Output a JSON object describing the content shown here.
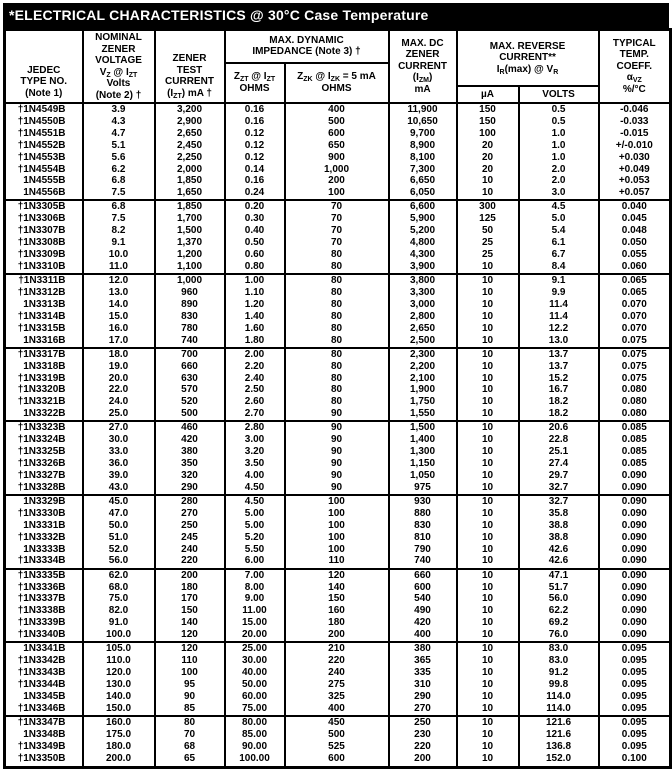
{
  "title": "*ELECTRICAL CHARACTERISTICS @ 30°C Case Temperature",
  "colors": {
    "title_bg": "#000000",
    "title_fg": "#ffffff",
    "border": "#000000",
    "page_bg": "#ffffff"
  },
  "table": {
    "columns": [
      "type",
      "vz",
      "izt",
      "zzt",
      "zzk",
      "izm",
      "ir_ua",
      "vr_volts",
      "coeff"
    ],
    "headers": {
      "jedec": [
        "JEDEC",
        "TYPE NO.",
        "(Note 1)"
      ],
      "nominal": [
        "NOMINAL",
        "ZENER",
        "VOLTAGE",
        "V~Z~ @ I~ZT~",
        "Volts",
        "(Note 2) †"
      ],
      "test_current": [
        "ZENER",
        "TEST",
        "CURRENT",
        "(I~ZT~) mA †"
      ],
      "impedance_group": [
        "MAX. DYNAMIC",
        "IMPEDANCE (Note 3) †"
      ],
      "zzt": [
        "Z~ZT~ @ I~ZT~",
        "OHMS"
      ],
      "zzk": [
        "Z~ZK~ @ I~ZK~ = 5 mA",
        "OHMS"
      ],
      "izm": [
        "MAX. DC",
        "ZENER",
        "CURRENT",
        "(I~ZM~)",
        "mA"
      ],
      "reverse_group": [
        "MAX. REVERSE",
        "CURRENT**",
        "I~R~(max) @ V~R~"
      ],
      "ua": [
        "µA"
      ],
      "volts": [
        "VOLTS"
      ],
      "coeff": [
        "TYPICAL",
        "TEMP.",
        "COEFF.",
        "α~VZ~",
        "%/°C"
      ]
    },
    "groups": [
      {
        "rows": [
          [
            "†1N4549B",
            "3.9",
            "3,200",
            "0.16",
            "400",
            "11,900",
            "150",
            "0.5",
            "-0.046"
          ],
          [
            "†1N4550B",
            "4.3",
            "2,900",
            "0.16",
            "500",
            "10,650",
            "150",
            "0.5",
            "-0.033"
          ],
          [
            "†1N4551B",
            "4.7",
            "2,650",
            "0.12",
            "600",
            "9,700",
            "100",
            "1.0",
            "-0.015"
          ],
          [
            "†1N4552B",
            "5.1",
            "2,450",
            "0.12",
            "650",
            "8,900",
            "20",
            "1.0",
            "+/-0.010"
          ],
          [
            "†1N4553B",
            "5.6",
            "2,250",
            "0.12",
            "900",
            "8,100",
            "20",
            "1.0",
            "+0.030"
          ],
          [
            "†1N4554B",
            "6.2",
            "2,000",
            "0.14",
            "1,000",
            "7,300",
            "20",
            "2.0",
            "+0.049"
          ],
          [
            "1N4555B",
            "6.8",
            "1,850",
            "0.16",
            "200",
            "6,650",
            "10",
            "2.0",
            "+0.053"
          ],
          [
            "1N4556B",
            "7.5",
            "1,650",
            "0.24",
            "100",
            "6,050",
            "10",
            "3.0",
            "+0.057"
          ]
        ]
      },
      {
        "rows": [
          [
            "†1N3305B",
            "6.8",
            "1,850",
            "0.20",
            "70",
            "6,600",
            "300",
            "4.5",
            "0.040"
          ],
          [
            "†1N3306B",
            "7.5",
            "1,700",
            "0.30",
            "70",
            "5,900",
            "125",
            "5.0",
            "0.045"
          ],
          [
            "†1N3307B",
            "8.2",
            "1,500",
            "0.40",
            "70",
            "5,200",
            "50",
            "5.4",
            "0.048"
          ],
          [
            "†1N3308B",
            "9.1",
            "1,370",
            "0.50",
            "70",
            "4,800",
            "25",
            "6.1",
            "0.050"
          ],
          [
            "†1N3309B",
            "10.0",
            "1,200",
            "0.60",
            "80",
            "4,300",
            "25",
            "6.7",
            "0.055"
          ],
          [
            "†1N3310B",
            "11.0",
            "1,100",
            "0.80",
            "80",
            "3,900",
            "10",
            "8.4",
            "0.060"
          ]
        ]
      },
      {
        "rows": [
          [
            "†1N3311B",
            "12.0",
            "1,000",
            "1.00",
            "80",
            "3,800",
            "10",
            "9.1",
            "0.065"
          ],
          [
            "†1N3312B",
            "13.0",
            "960",
            "1.10",
            "80",
            "3,300",
            "10",
            "9.9",
            "0.065"
          ],
          [
            "1N3313B",
            "14.0",
            "890",
            "1.20",
            "80",
            "3,000",
            "10",
            "11.4",
            "0.070"
          ],
          [
            "†1N3314B",
            "15.0",
            "830",
            "1.40",
            "80",
            "2,800",
            "10",
            "11.4",
            "0.070"
          ],
          [
            "†1N3315B",
            "16.0",
            "780",
            "1.60",
            "80",
            "2,650",
            "10",
            "12.2",
            "0.070"
          ],
          [
            "1N3316B",
            "17.0",
            "740",
            "1.80",
            "80",
            "2,500",
            "10",
            "13.0",
            "0.075"
          ]
        ]
      },
      {
        "rows": [
          [
            "†1N3317B",
            "18.0",
            "700",
            "2.00",
            "80",
            "2,300",
            "10",
            "13.7",
            "0.075"
          ],
          [
            "1N3318B",
            "19.0",
            "660",
            "2.20",
            "80",
            "2,200",
            "10",
            "13.7",
            "0.075"
          ],
          [
            "†1N3319B",
            "20.0",
            "630",
            "2.40",
            "80",
            "2,100",
            "10",
            "15.2",
            "0.075"
          ],
          [
            "†1N3320B",
            "22.0",
            "570",
            "2.50",
            "80",
            "1,900",
            "10",
            "16.7",
            "0.080"
          ],
          [
            "†1N3321B",
            "24.0",
            "520",
            "2.60",
            "80",
            "1,750",
            "10",
            "18.2",
            "0.080"
          ],
          [
            "1N3322B",
            "25.0",
            "500",
            "2.70",
            "90",
            "1,550",
            "10",
            "18.2",
            "0.080"
          ]
        ]
      },
      {
        "rows": [
          [
            "†1N3323B",
            "27.0",
            "460",
            "2.80",
            "90",
            "1,500",
            "10",
            "20.6",
            "0.085"
          ],
          [
            "†1N3324B",
            "30.0",
            "420",
            "3.00",
            "90",
            "1,400",
            "10",
            "22.8",
            "0.085"
          ],
          [
            "†1N3325B",
            "33.0",
            "380",
            "3.20",
            "90",
            "1,300",
            "10",
            "25.1",
            "0.085"
          ],
          [
            "†1N3326B",
            "36.0",
            "350",
            "3.50",
            "90",
            "1,150",
            "10",
            "27.4",
            "0.085"
          ],
          [
            "†1N3327B",
            "39.0",
            "320",
            "4.00",
            "90",
            "1,050",
            "10",
            "29.7",
            "0.090"
          ],
          [
            "†1N3328B",
            "43.0",
            "290",
            "4.50",
            "90",
            "975",
            "10",
            "32.7",
            "0.090"
          ]
        ]
      },
      {
        "rows": [
          [
            "1N3329B",
            "45.0",
            "280",
            "4.50",
            "100",
            "930",
            "10",
            "32.7",
            "0.090"
          ],
          [
            "†1N3330B",
            "47.0",
            "270",
            "5.00",
            "100",
            "880",
            "10",
            "35.8",
            "0.090"
          ],
          [
            "1N3331B",
            "50.0",
            "250",
            "5.00",
            "100",
            "830",
            "10",
            "38.8",
            "0.090"
          ],
          [
            "†1N3332B",
            "51.0",
            "245",
            "5.20",
            "100",
            "810",
            "10",
            "38.8",
            "0.090"
          ],
          [
            "1N3333B",
            "52.0",
            "240",
            "5.50",
            "100",
            "790",
            "10",
            "42.6",
            "0.090"
          ],
          [
            "†1N3334B",
            "56.0",
            "220",
            "6.00",
            "110",
            "740",
            "10",
            "42.6",
            "0.090"
          ]
        ]
      },
      {
        "rows": [
          [
            "†1N3335B",
            "62.0",
            "200",
            "7.00",
            "120",
            "660",
            "10",
            "47.1",
            "0.090"
          ],
          [
            "†1N3336B",
            "68.0",
            "180",
            "8.00",
            "140",
            "600",
            "10",
            "51.7",
            "0.090"
          ],
          [
            "†1N3337B",
            "75.0",
            "170",
            "9.00",
            "150",
            "540",
            "10",
            "56.0",
            "0.090"
          ],
          [
            "†1N3338B",
            "82.0",
            "150",
            "11.00",
            "160",
            "490",
            "10",
            "62.2",
            "0.090"
          ],
          [
            "†1N3339B",
            "91.0",
            "140",
            "15.00",
            "180",
            "420",
            "10",
            "69.2",
            "0.090"
          ],
          [
            "†1N3340B",
            "100.0",
            "120",
            "20.00",
            "200",
            "400",
            "10",
            "76.0",
            "0.090"
          ]
        ]
      },
      {
        "rows": [
          [
            "1N3341B",
            "105.0",
            "120",
            "25.00",
            "210",
            "380",
            "10",
            "83.0",
            "0.095"
          ],
          [
            "†1N3342B",
            "110.0",
            "110",
            "30.00",
            "220",
            "365",
            "10",
            "83.0",
            "0.095"
          ],
          [
            "†1N3343B",
            "120.0",
            "100",
            "40.00",
            "240",
            "335",
            "10",
            "91.2",
            "0.095"
          ],
          [
            "†1N3344B",
            "130.0",
            "95",
            "50.00",
            "275",
            "310",
            "10",
            "99.8",
            "0.095"
          ],
          [
            "1N3345B",
            "140.0",
            "90",
            "60.00",
            "325",
            "290",
            "10",
            "114.0",
            "0.095"
          ],
          [
            "†1N3346B",
            "150.0",
            "85",
            "75.00",
            "400",
            "270",
            "10",
            "114.0",
            "0.095"
          ]
        ]
      },
      {
        "rows": [
          [
            "†1N3347B",
            "160.0",
            "80",
            "80.00",
            "450",
            "250",
            "10",
            "121.6",
            "0.095"
          ],
          [
            "1N3348B",
            "175.0",
            "70",
            "85.00",
            "500",
            "230",
            "10",
            "121.6",
            "0.095"
          ],
          [
            "†1N3349B",
            "180.0",
            "68",
            "90.00",
            "525",
            "220",
            "10",
            "136.8",
            "0.095"
          ],
          [
            "†1N3350B",
            "200.0",
            "65",
            "100.00",
            "600",
            "200",
            "10",
            "152.0",
            "0.100"
          ]
        ]
      }
    ]
  }
}
